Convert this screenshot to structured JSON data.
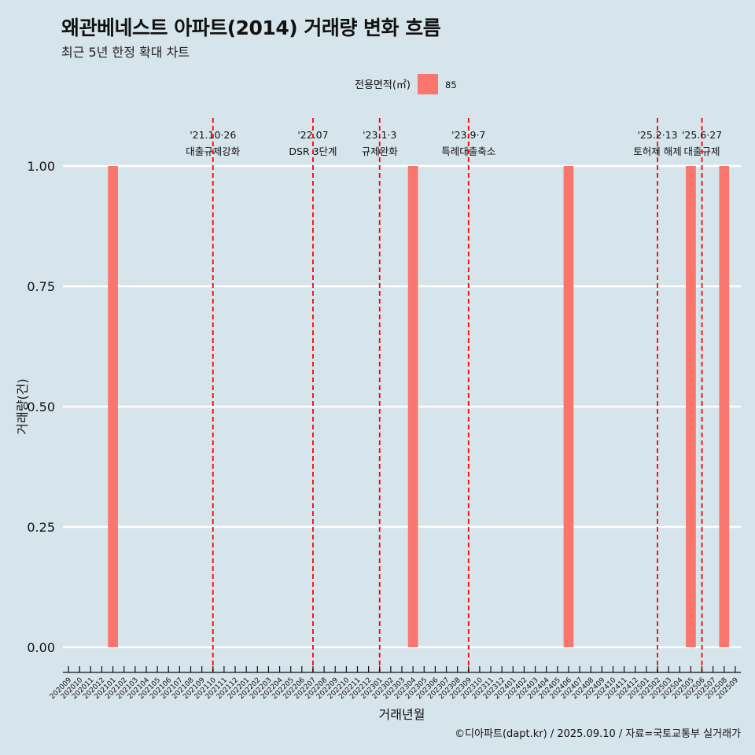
{
  "header": {
    "title": "왜관베네스트 아파트(2014) 거래량 변화 흐름",
    "subtitle": "최근 5년 한정 확대 차트"
  },
  "caption": "©디아파트(dapt.kr) / 2025.09.10 / 자료=국토교통부 실거래가",
  "chart_data": {
    "type": "bar",
    "title": "왜관베네스트 아파트(2014) 거래량 변화 흐름",
    "subtitle": "최근 5년 한정 확대 차트",
    "xlabel": "거래년월",
    "ylabel": "거래량(건)",
    "ylim": [
      0,
      1
    ],
    "y_ticks": [
      "0.00",
      "0.25",
      "0.50",
      "0.75",
      "1.00"
    ],
    "grid": true,
    "legend": {
      "title": "전용면적(㎡)",
      "position": "top",
      "items": [
        {
          "name": "85",
          "color": "#f8766d"
        }
      ]
    },
    "categories": [
      "202009",
      "202010",
      "202011",
      "202012",
      "202101",
      "202102",
      "202103",
      "202104",
      "202105",
      "202106",
      "202107",
      "202108",
      "202109",
      "202110",
      "202111",
      "202112",
      "202201",
      "202202",
      "202203",
      "202204",
      "202205",
      "202206",
      "202207",
      "202208",
      "202209",
      "202210",
      "202211",
      "202212",
      "202301",
      "202302",
      "202303",
      "202304",
      "202305",
      "202306",
      "202307",
      "202308",
      "202309",
      "202310",
      "202311",
      "202312",
      "202401",
      "202402",
      "202403",
      "202404",
      "202405",
      "202406",
      "202407",
      "202408",
      "202409",
      "202410",
      "202411",
      "202412",
      "202501",
      "202502",
      "202503",
      "202504",
      "202505",
      "202506",
      "202507",
      "202508",
      "202509"
    ],
    "series": [
      {
        "name": "85",
        "color": "#f8766d",
        "values": [
          {
            "x": "202101",
            "y": 1
          },
          {
            "x": "202304",
            "y": 1
          },
          {
            "x": "202406",
            "y": 1
          },
          {
            "x": "202505",
            "y": 1
          },
          {
            "x": "202508",
            "y": 1
          }
        ]
      }
    ],
    "annotations": [
      {
        "x": "202110",
        "date_label": "'21.10·26",
        "event": "대출규제강화"
      },
      {
        "x": "202207",
        "date_label": "'22.07",
        "event": "DSR 3단계"
      },
      {
        "x": "202301",
        "date_label": "'23.1·3",
        "event": "규제완화"
      },
      {
        "x": "202309",
        "date_label": "'23.9·7",
        "event": "특례대출축소"
      },
      {
        "x": "202502",
        "date_label": "'25.2·13",
        "event": "토허제 해제"
      },
      {
        "x": "202506",
        "date_label": "'25.6·27",
        "event": "대출규제"
      }
    ],
    "annotation_line_color": "#ff0000"
  }
}
